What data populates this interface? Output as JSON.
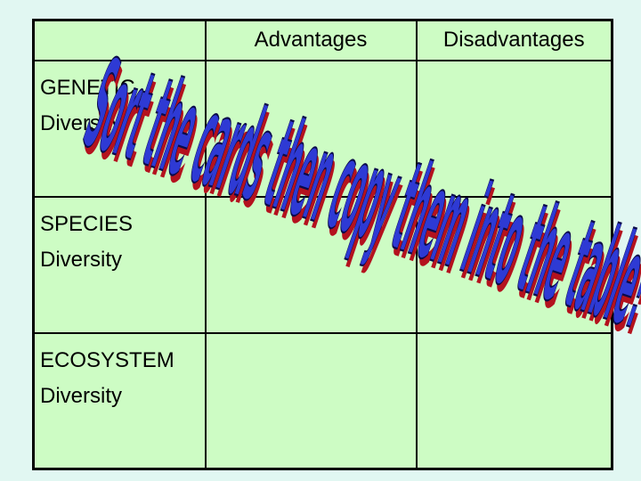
{
  "table": {
    "headers": [
      "",
      "Advantages",
      "Disadvantages"
    ],
    "rows": [
      {
        "line1": "GENETIC",
        "line2": "Diversity"
      },
      {
        "line1": "SPECIES",
        "line2": "Diversity"
      },
      {
        "line1": "ECOSYSTEM",
        "line2": "Diversity"
      }
    ]
  },
  "banner": {
    "text": "Sort the cards then copy them into the table!",
    "colors": {
      "fill": "#2e3ad4",
      "shadow": "#b4121e",
      "outline": "#0a0a4a"
    }
  },
  "colors": {
    "page_background": "#e1f7f2",
    "table_background": "#cdfcc4",
    "border": "#000000"
  }
}
